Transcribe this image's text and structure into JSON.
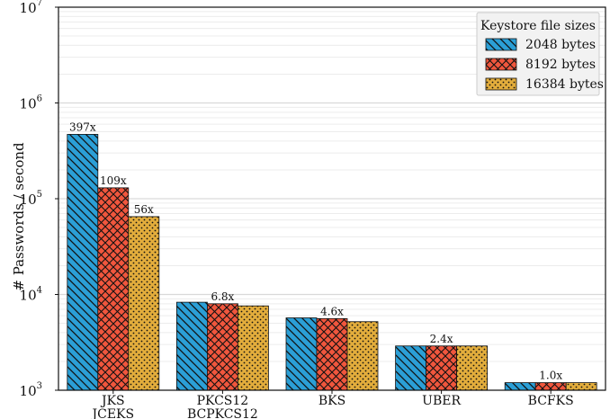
{
  "chart_data": {
    "type": "bar",
    "scale": "log",
    "ylabel": "# Passwords / second",
    "ylim": [
      1000,
      10000000
    ],
    "y_ticks": [
      {
        "value": 1000,
        "base": "10",
        "exp": "3"
      },
      {
        "value": 10000,
        "base": "10",
        "exp": "4"
      },
      {
        "value": 100000,
        "base": "10",
        "exp": "5"
      },
      {
        "value": 1000000,
        "base": "10",
        "exp": "6"
      },
      {
        "value": 10000000,
        "base": "10",
        "exp": "7"
      }
    ],
    "grid": true,
    "categories": [
      {
        "line1": "JKS",
        "line2": "JCEKS"
      },
      {
        "line1": "PKCS12",
        "line2": "BCPKCS12"
      },
      {
        "line1": "BKS",
        "line2": ""
      },
      {
        "line1": "UBER",
        "line2": ""
      },
      {
        "line1": "BCFKS",
        "line2": ""
      }
    ],
    "legend": {
      "title": "Keystore file sizes",
      "placement": "top-right"
    },
    "series": [
      {
        "name": "2048 bytes",
        "color": "#2b9fd6",
        "pattern": "diagonal-hatch",
        "values": [
          470000,
          8300,
          5700,
          2900,
          1200
        ]
      },
      {
        "name": "8192 bytes",
        "color": "#f0563d",
        "pattern": "cross-hatch",
        "values": [
          130000,
          8000,
          5600,
          2900,
          1200
        ]
      },
      {
        "name": "16384 bytes",
        "color": "#e3ad3c",
        "pattern": "dots",
        "values": [
          65000,
          7600,
          5200,
          2900,
          1200
        ]
      }
    ],
    "annotations": [
      {
        "category": 0,
        "series": 0,
        "text": "397x"
      },
      {
        "category": 0,
        "series": 1,
        "text": "109x"
      },
      {
        "category": 0,
        "series": 2,
        "text": "56x"
      },
      {
        "category": 1,
        "series": 1,
        "text": "6.8x"
      },
      {
        "category": 2,
        "series": 1,
        "text": "4.6x"
      },
      {
        "category": 3,
        "series": 1,
        "text": "2.4x"
      },
      {
        "category": 4,
        "series": 1,
        "text": "1.0x"
      }
    ]
  }
}
